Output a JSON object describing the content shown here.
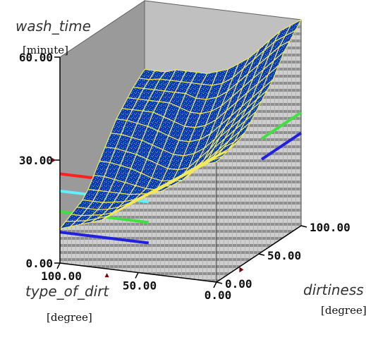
{
  "chart_data": {
    "type": "surface3d",
    "z_axis": {
      "label": "wash_time",
      "unit": "[minute]",
      "range": [
        0,
        60
      ],
      "ticks": [
        "0.00",
        "30.00",
        "60.00"
      ]
    },
    "x_axis": {
      "label": "type_of_dirt",
      "unit": "[degree]",
      "range": [
        100,
        0
      ],
      "ticks": [
        "100.00",
        "50.00",
        "0.00"
      ]
    },
    "y_axis": {
      "label": "dirtiness",
      "unit": "[degree]",
      "range": [
        0,
        100
      ],
      "ticks": [
        "0.00",
        "50.00",
        "100.00"
      ]
    },
    "grid_size": 15,
    "surface_values": [
      [
        10,
        11,
        12,
        13,
        14,
        16,
        18,
        20,
        22,
        24,
        26,
        28,
        30,
        32,
        34,
        35
      ],
      [
        11,
        11.5,
        12,
        13,
        14,
        16,
        18,
        20,
        22,
        24,
        26,
        28,
        30,
        32,
        34,
        35.5
      ],
      [
        12,
        12,
        12.5,
        13,
        14,
        16,
        18,
        20,
        22,
        24,
        26,
        28,
        30,
        32,
        34,
        36
      ],
      [
        13,
        13,
        13,
        13.5,
        14.5,
        16,
        18,
        20,
        22,
        24,
        26,
        28,
        30,
        32,
        34,
        36.5
      ],
      [
        14,
        14,
        14,
        14.5,
        15,
        16,
        17.5,
        19,
        21,
        23,
        26,
        28,
        30,
        32,
        34,
        37
      ],
      [
        16,
        16,
        16,
        16,
        16,
        16.5,
        17,
        18,
        20,
        22,
        25,
        27,
        30,
        33,
        35,
        38
      ],
      [
        19,
        19,
        18.5,
        18,
        17.5,
        17,
        17,
        18,
        20,
        22,
        25,
        28,
        31,
        34,
        37,
        40
      ],
      [
        22,
        22,
        21.5,
        21,
        20,
        19,
        18.5,
        19,
        21,
        23,
        26,
        30,
        33,
        36,
        39,
        42
      ],
      [
        25,
        25,
        24.5,
        24,
        23,
        22,
        21,
        21,
        22,
        25,
        28,
        32,
        35,
        38,
        41,
        44
      ],
      [
        28,
        28,
        27.5,
        27,
        26,
        25,
        24,
        24,
        25,
        27,
        30,
        34,
        37,
        40,
        43,
        46
      ],
      [
        31,
        31,
        30.5,
        30,
        29,
        28,
        27,
        27,
        28,
        30,
        33,
        36,
        39,
        42,
        45,
        48
      ],
      [
        33,
        33,
        33,
        33,
        32,
        31,
        30,
        30,
        31,
        33,
        36,
        39,
        42,
        45,
        48,
        51
      ],
      [
        35,
        35,
        35,
        35,
        35,
        34,
        33,
        33,
        34,
        36,
        39,
        42,
        45,
        48,
        51,
        54
      ],
      [
        37,
        37,
        37,
        37,
        37,
        37,
        36,
        36,
        37,
        39,
        42,
        45,
        48,
        51,
        54,
        56
      ],
      [
        38.5,
        38.5,
        39,
        39,
        39,
        39,
        39,
        39,
        40,
        42,
        45,
        48,
        51,
        54,
        56,
        58
      ],
      [
        40,
        40,
        40,
        41,
        41,
        41,
        41,
        42,
        43,
        45,
        47,
        50,
        53,
        56,
        58,
        60
      ]
    ]
  }
}
